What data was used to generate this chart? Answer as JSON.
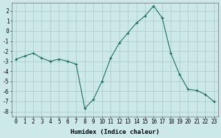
{
  "x": [
    0,
    1,
    2,
    3,
    4,
    5,
    6,
    7,
    8,
    9,
    10,
    11,
    12,
    13,
    14,
    15,
    16,
    17,
    18,
    19,
    20,
    21,
    22,
    23
  ],
  "y": [
    -2.8,
    -2.5,
    -2.2,
    -2.7,
    -3.0,
    -2.8,
    -3.0,
    -3.3,
    -7.7,
    -6.8,
    -5.0,
    -2.7,
    -1.2,
    -0.2,
    0.8,
    1.5,
    2.5,
    1.3,
    -2.2,
    -4.3,
    -5.8,
    -5.9,
    -6.3,
    -7.0
  ],
  "line_color": "#1a6b5a",
  "marker": "+",
  "marker_size": 3,
  "xlabel": "Humidex (Indice chaleur)",
  "xlim": [
    -0.5,
    23.5
  ],
  "ylim": [
    -8.5,
    2.8
  ],
  "yticks": [
    -8,
    -7,
    -6,
    -5,
    -4,
    -3,
    -2,
    -1,
    0,
    1,
    2
  ],
  "xticks": [
    0,
    1,
    2,
    3,
    4,
    5,
    6,
    7,
    8,
    9,
    10,
    11,
    12,
    13,
    14,
    15,
    16,
    17,
    18,
    19,
    20,
    21,
    22,
    23
  ],
  "bg_color": "#cce8e8",
  "grid_color": "#aac8c8",
  "label_fontsize": 6.5,
  "tick_fontsize": 5.5
}
